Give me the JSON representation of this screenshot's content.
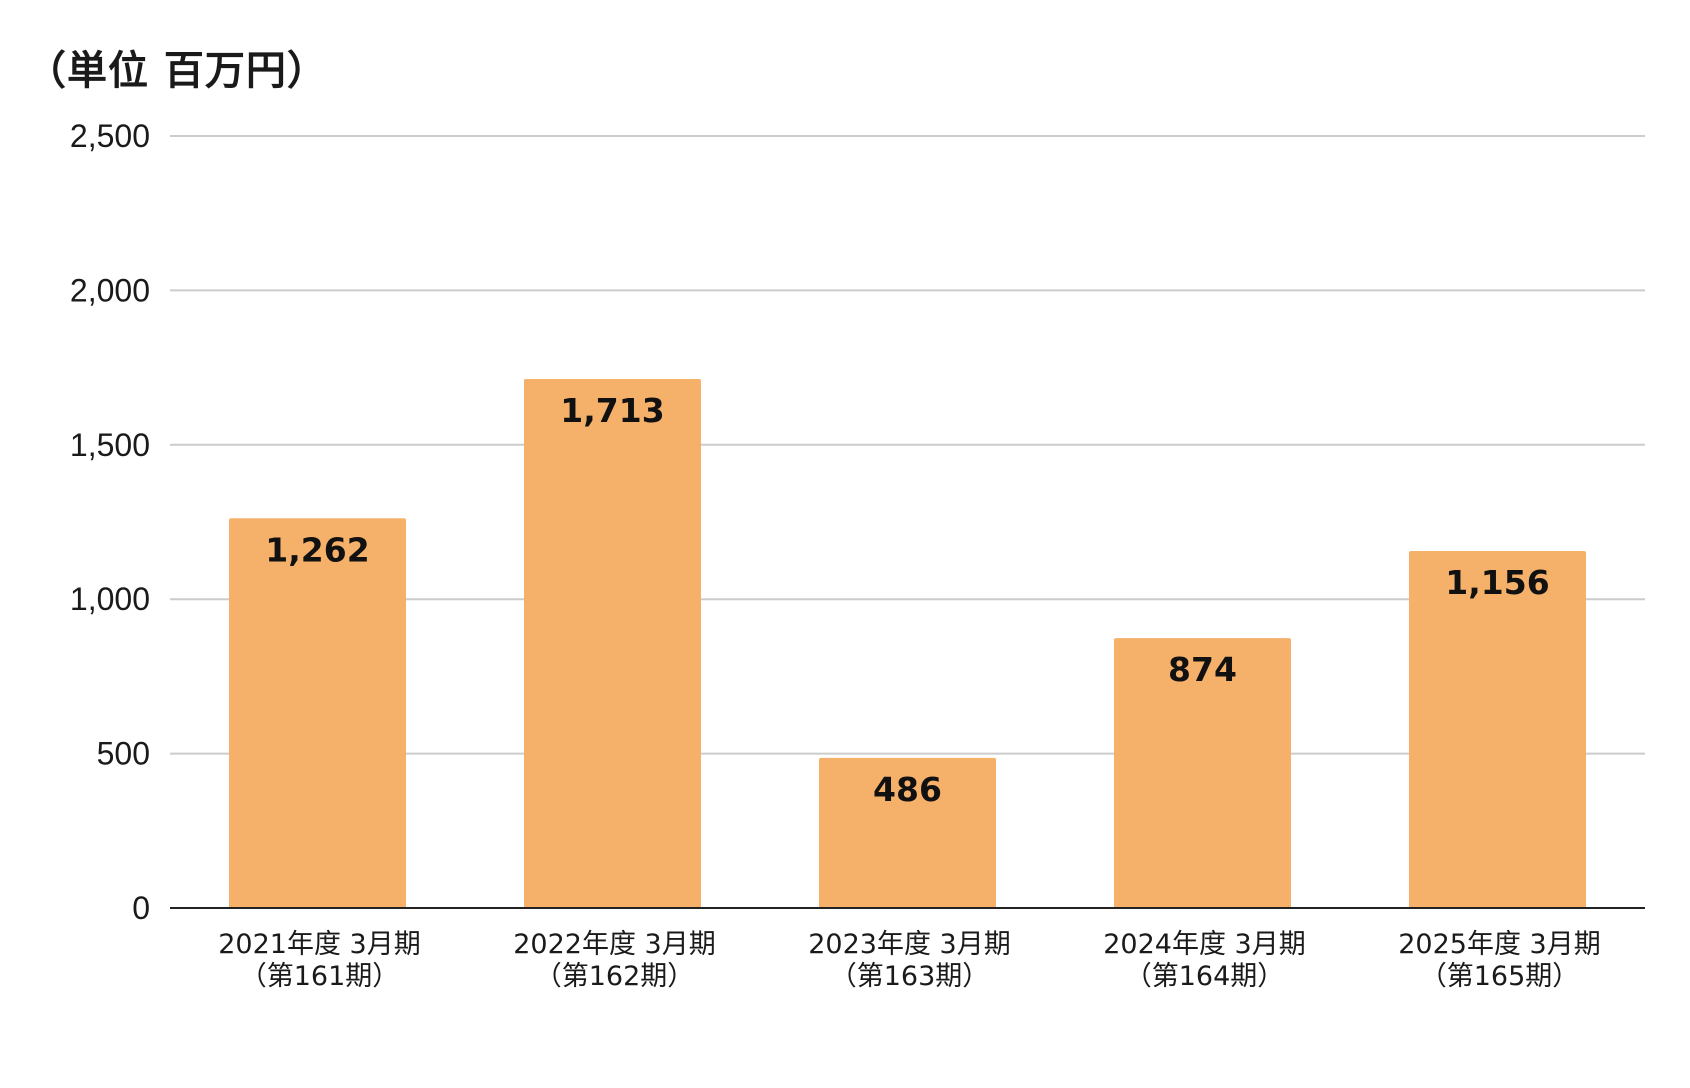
{
  "chart_data": {
    "type": "bar",
    "unit_label": "（単位 百万円）",
    "categories": [
      [
        "2021年度 3月期",
        "（第161期）"
      ],
      [
        "2022年度 3月期",
        "（第162期）"
      ],
      [
        "2023年度 3月期",
        "（第163期）"
      ],
      [
        "2024年度 3月期",
        "（第164期）"
      ],
      [
        "2025年度 3月期",
        "（第165期）"
      ]
    ],
    "values": [
      1262,
      1713,
      486,
      874,
      1156
    ],
    "value_labels": [
      "1,262",
      "1,713",
      "486",
      "874",
      "1,156"
    ],
    "y_ticks": [
      0,
      500,
      1000,
      1500,
      2000,
      2500
    ],
    "y_tick_labels": [
      "0",
      "500",
      "1,000",
      "1,500",
      "2,000",
      "2,500"
    ],
    "ylim": [
      0,
      2500
    ],
    "grid": true,
    "bar_color": "#F5B06A",
    "grid_color": "#cccccc",
    "axis_color": "#222222"
  }
}
